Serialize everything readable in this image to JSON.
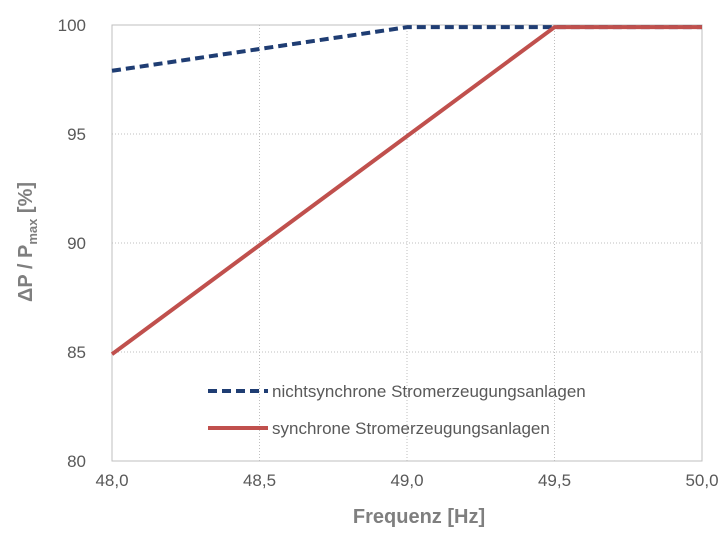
{
  "chart_data": {
    "type": "line",
    "title": "",
    "xlabel": "Frequenz [Hz]",
    "ylabel_parts": {
      "prefix": "ΔP / P",
      "subscript": "max",
      "suffix": " [%]"
    },
    "xlim": [
      48.0,
      50.0
    ],
    "ylim": [
      80,
      100
    ],
    "x_ticks": [
      48.0,
      48.5,
      49.0,
      49.5,
      50.0
    ],
    "x_tick_labels": [
      "48,0",
      "48,5",
      "49,0",
      "49,5",
      "50,0"
    ],
    "y_ticks": [
      80,
      85,
      90,
      95,
      100
    ],
    "y_tick_labels": [
      "80",
      "85",
      "90",
      "95",
      "100"
    ],
    "grid": true,
    "legend_position": "bottom-center",
    "series": [
      {
        "name": "nichtsynchrone Stromerzeugungsanlagen",
        "style": "dashed",
        "color": "#1f3d73",
        "x": [
          48.0,
          49.0,
          50.0
        ],
        "y": [
          97.9,
          99.9,
          99.9
        ]
      },
      {
        "name": "synchrone Stromerzeugungsanlagen",
        "style": "solid",
        "color": "#c0504d",
        "x": [
          48.0,
          49.5,
          50.0
        ],
        "y": [
          84.9,
          99.9,
          99.9
        ]
      }
    ]
  }
}
